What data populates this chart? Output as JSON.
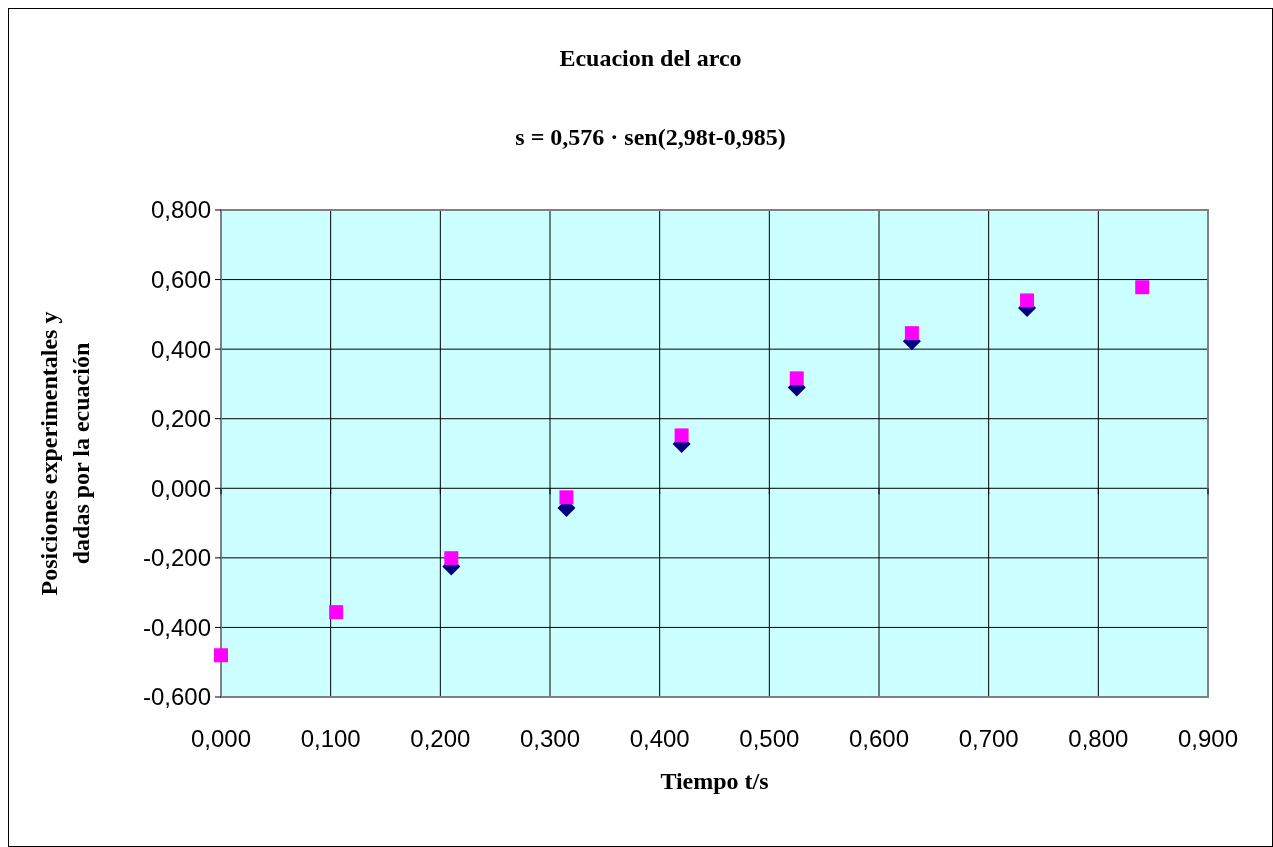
{
  "chart_data": {
    "type": "scatter",
    "title": "Ecuacion del arco",
    "subtitle": "s  = 0,576 · sen(2,98t-0,985)",
    "xlabel": "Tiempo t/s",
    "ylabel": "Posiciones experimentales y dadas por la ecuación",
    "x": [
      0,
      0.105,
      0.21,
      0.315,
      0.42,
      0.525,
      0.63,
      0.735,
      0.84
    ],
    "series": [
      {
        "color": "#000080",
        "marker": "diamond",
        "values": [
          null,
          null,
          -0.225,
          -0.057,
          0.127,
          0.29,
          0.423,
          0.518,
          null
        ]
      },
      {
        "color": "#ff00ff",
        "marker": "square",
        "values": [
          -0.48,
          -0.356,
          -0.201,
          -0.026,
          0.152,
          0.316,
          0.446,
          0.54,
          0.578
        ]
      }
    ],
    "xlim": [
      0,
      0.9
    ],
    "ylim": [
      -0.6,
      0.8
    ],
    "xticks": [
      {
        "value": 0,
        "label": "0,000"
      },
      {
        "value": 0.1,
        "label": "0,100"
      },
      {
        "value": 0.2,
        "label": "0,200"
      },
      {
        "value": 0.3,
        "label": "0,300"
      },
      {
        "value": 0.4,
        "label": "0,400"
      },
      {
        "value": 0.5,
        "label": "0,500"
      },
      {
        "value": 0.6,
        "label": "0,600"
      },
      {
        "value": 0.7,
        "label": "0,700"
      },
      {
        "value": 0.8,
        "label": "0,800"
      },
      {
        "value": 0.9,
        "label": "0,900"
      }
    ],
    "yticks": [
      {
        "value": -0.6,
        "label": "-0,600"
      },
      {
        "value": -0.4,
        "label": "-0,400"
      },
      {
        "value": -0.2,
        "label": "-0,200"
      },
      {
        "value": 0,
        "label": "0,000"
      },
      {
        "value": 0.2,
        "label": "0,200"
      },
      {
        "value": 0.4,
        "label": "0,400"
      },
      {
        "value": 0.6,
        "label": "0,600"
      },
      {
        "value": 0.8,
        "label": "0,800"
      }
    ],
    "grid": true
  }
}
